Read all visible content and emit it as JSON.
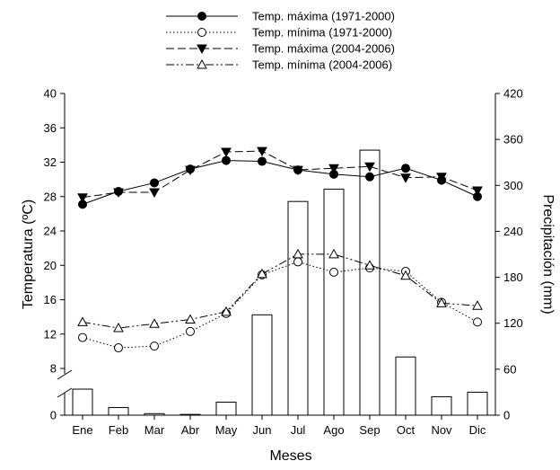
{
  "chart_data": {
    "type": "bar+line",
    "categories": [
      "Ene",
      "Feb",
      "Mar",
      "Abr",
      "May",
      "Jun",
      "Jul",
      "Ago",
      "Sep",
      "Oct",
      "Nov",
      "Dic"
    ],
    "xlabel": "Meses",
    "ylabel_left": "Temperatura (ºC)",
    "ylabel_right": "Precipitación (mm)",
    "y_left": {
      "ticks_lower": [
        "0"
      ],
      "ticks_upper": [
        "8",
        "12",
        "16",
        "20",
        "24",
        "28",
        "32",
        "36",
        "40"
      ],
      "broken_axis": true,
      "range_upper": [
        8,
        40
      ]
    },
    "y_right": {
      "ticks": [
        "0",
        "60",
        "120",
        "180",
        "240",
        "300",
        "360",
        "420"
      ],
      "range": [
        0,
        420
      ]
    },
    "bars": {
      "name": "Precipitación",
      "values": [
        34,
        10,
        2,
        1,
        17,
        131,
        279,
        295,
        346,
        76,
        24,
        30
      ]
    },
    "series": [
      {
        "name": "Temp. máxima (1971-2000)",
        "marker": "filled-circle",
        "line": "solid",
        "values": [
          27.1,
          28.6,
          29.6,
          31.2,
          32.2,
          32.1,
          31.1,
          30.6,
          30.3,
          31.3,
          29.9,
          28.0
        ]
      },
      {
        "name": "Temp. mínima (1971-2000)",
        "marker": "open-circle",
        "line": "dotted",
        "values": [
          11.6,
          10.4,
          10.6,
          12.3,
          14.4,
          18.9,
          20.4,
          19.2,
          19.7,
          19.3,
          15.7,
          13.4
        ]
      },
      {
        "name": "Temp. máxima (2004-2006)",
        "marker": "filled-triangle-down",
        "line": "dashed",
        "values": [
          27.9,
          28.5,
          28.5,
          31.1,
          33.2,
          33.3,
          31.1,
          31.3,
          31.5,
          30.2,
          30.3,
          28.7
        ]
      },
      {
        "name": "Temp. mínima (2004-2006)",
        "marker": "open-triangle-up",
        "line": "dash-dot-dot",
        "values": [
          13.4,
          12.7,
          13.2,
          13.7,
          14.6,
          19.0,
          21.3,
          21.3,
          20.0,
          18.8,
          15.6,
          15.3
        ]
      }
    ],
    "legend": "top-center"
  }
}
